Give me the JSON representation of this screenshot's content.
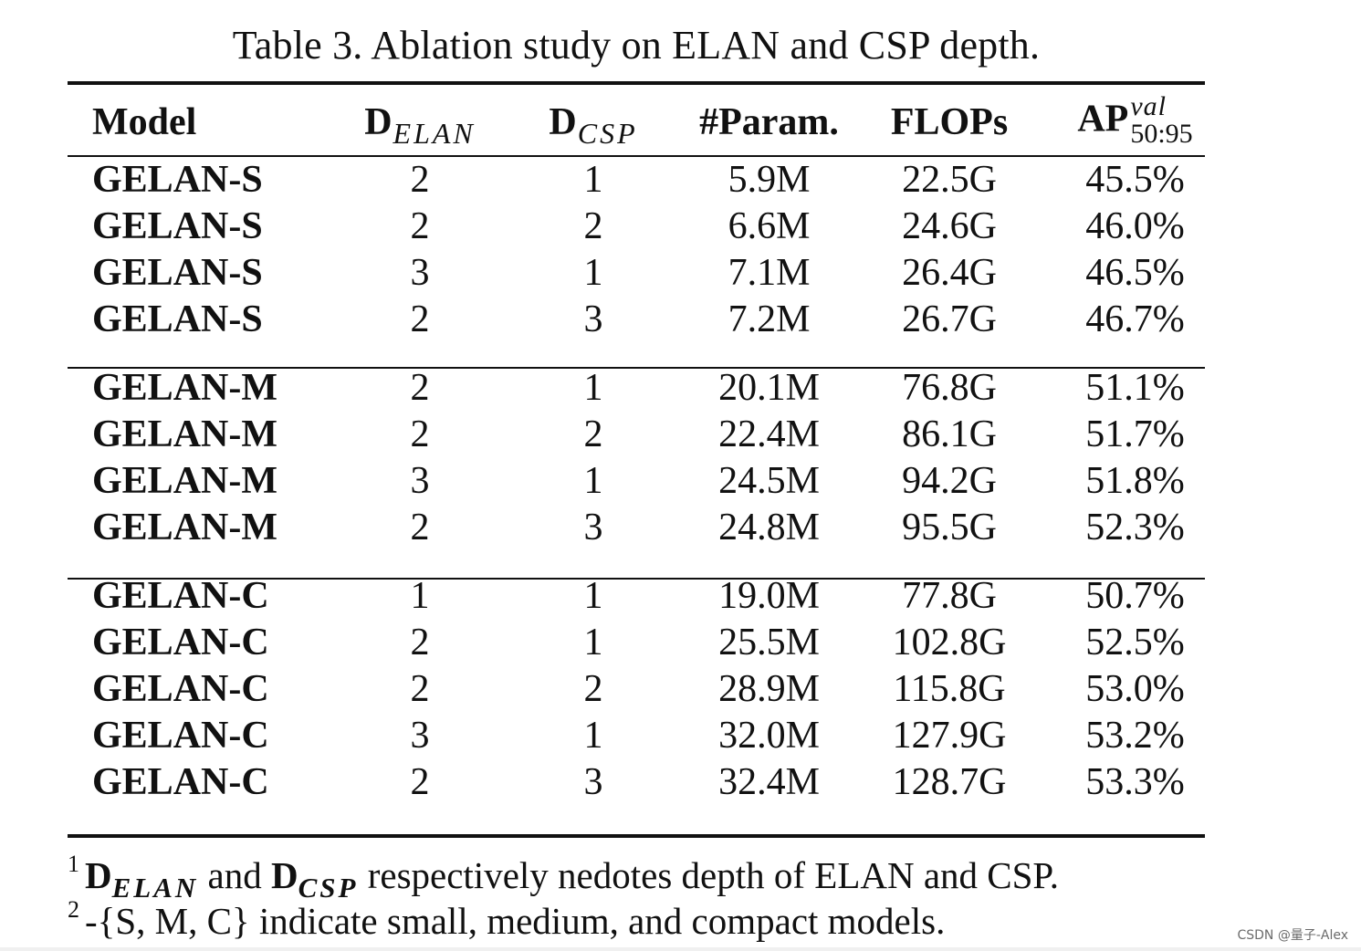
{
  "caption": "Table 3. Ablation study on ELAN and CSP depth.",
  "columns": {
    "model": "Model",
    "delan_base": "D",
    "delan_sub": "ELAN",
    "dcsp_base": "D",
    "dcsp_sub": "CSP",
    "param": "#Param.",
    "flops": "FLOPs",
    "ap_base": "AP",
    "ap_sup": "val",
    "ap_sub": "50:95"
  },
  "groups": [
    {
      "rows": [
        {
          "model": "GELAN-S",
          "d_elan": "2",
          "d_csp": "1",
          "param": "5.9M",
          "flops": "22.5G",
          "ap": "45.5%"
        },
        {
          "model": "GELAN-S",
          "d_elan": "2",
          "d_csp": "2",
          "param": "6.6M",
          "flops": "24.6G",
          "ap": "46.0%"
        },
        {
          "model": "GELAN-S",
          "d_elan": "3",
          "d_csp": "1",
          "param": "7.1M",
          "flops": "26.4G",
          "ap": "46.5%"
        },
        {
          "model": "GELAN-S",
          "d_elan": "2",
          "d_csp": "3",
          "param": "7.2M",
          "flops": "26.7G",
          "ap": "46.7%"
        }
      ]
    },
    {
      "rows": [
        {
          "model": "GELAN-M",
          "d_elan": "2",
          "d_csp": "1",
          "param": "20.1M",
          "flops": "76.8G",
          "ap": "51.1%"
        },
        {
          "model": "GELAN-M",
          "d_elan": "2",
          "d_csp": "2",
          "param": "22.4M",
          "flops": "86.1G",
          "ap": "51.7%"
        },
        {
          "model": "GELAN-M",
          "d_elan": "3",
          "d_csp": "1",
          "param": "24.5M",
          "flops": "94.2G",
          "ap": "51.8%"
        },
        {
          "model": "GELAN-M",
          "d_elan": "2",
          "d_csp": "3",
          "param": "24.8M",
          "flops": "95.5G",
          "ap": "52.3%"
        }
      ]
    },
    {
      "rows": [
        {
          "model": "GELAN-C",
          "d_elan": "1",
          "d_csp": "1",
          "param": "19.0M",
          "flops": "77.8G",
          "ap": "50.7%"
        },
        {
          "model": "GELAN-C",
          "d_elan": "2",
          "d_csp": "1",
          "param": "25.5M",
          "flops": "102.8G",
          "ap": "52.5%"
        },
        {
          "model": "GELAN-C",
          "d_elan": "2",
          "d_csp": "2",
          "param": "28.9M",
          "flops": "115.8G",
          "ap": "53.0%"
        },
        {
          "model": "GELAN-C",
          "d_elan": "3",
          "d_csp": "1",
          "param": "32.0M",
          "flops": "127.9G",
          "ap": "53.2%"
        },
        {
          "model": "GELAN-C",
          "d_elan": "2",
          "d_csp": "3",
          "param": "32.4M",
          "flops": "128.7G",
          "ap": "53.3%"
        }
      ]
    }
  ],
  "footnotes": {
    "fn1_mark": "1",
    "fn1_d1": "D",
    "fn1_sub1": "ELAN",
    "fn1_and": " and ",
    "fn1_d2": "D",
    "fn1_sub2": "CSP",
    "fn1_text": " respectively nedotes depth of ELAN and CSP.",
    "fn2_mark": "2",
    "fn2_text": "-{S, M, C} indicate small, medium, and compact models."
  },
  "watermark": "CSDN @量子-Alex"
}
